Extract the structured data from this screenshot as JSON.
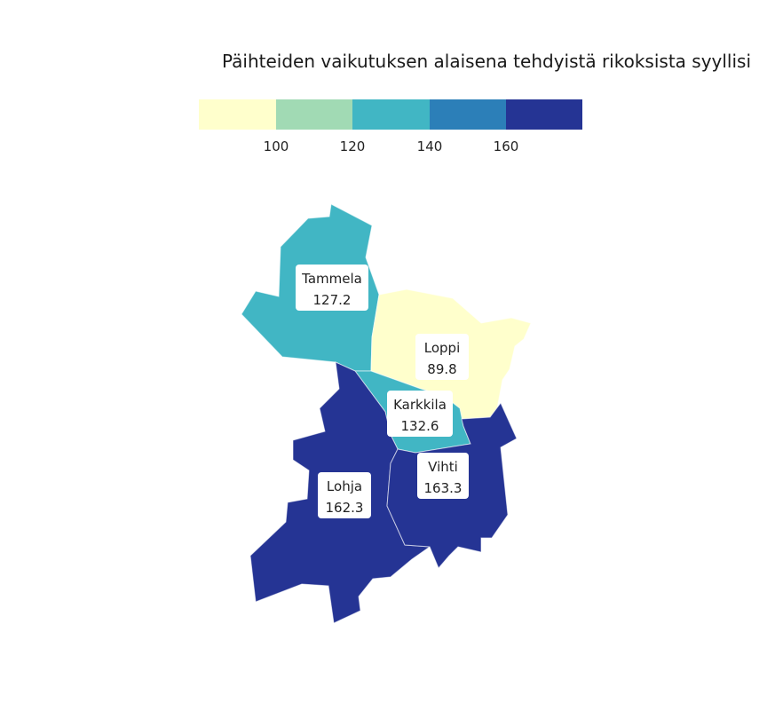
{
  "title": "Päihteiden vaikutuksen alaisena tehdyistä rikoksista syyllisi",
  "legend": {
    "colors": [
      "#ffffcc",
      "#a1dab4",
      "#41b6c4",
      "#2c7fb8",
      "#253494"
    ],
    "ticks": [
      "100",
      "120",
      "140",
      "160"
    ]
  },
  "regions": [
    {
      "name": "Tammela",
      "value": "127.2",
      "color": "#41b6c4"
    },
    {
      "name": "Loppi",
      "value": "89.8",
      "color": "#ffffcc"
    },
    {
      "name": "Karkkila",
      "value": "132.6",
      "color": "#41b6c4"
    },
    {
      "name": "Lohja",
      "value": "162.3",
      "color": "#253494"
    },
    {
      "name": "Vihti",
      "value": "163.3",
      "color": "#253494"
    }
  ]
}
